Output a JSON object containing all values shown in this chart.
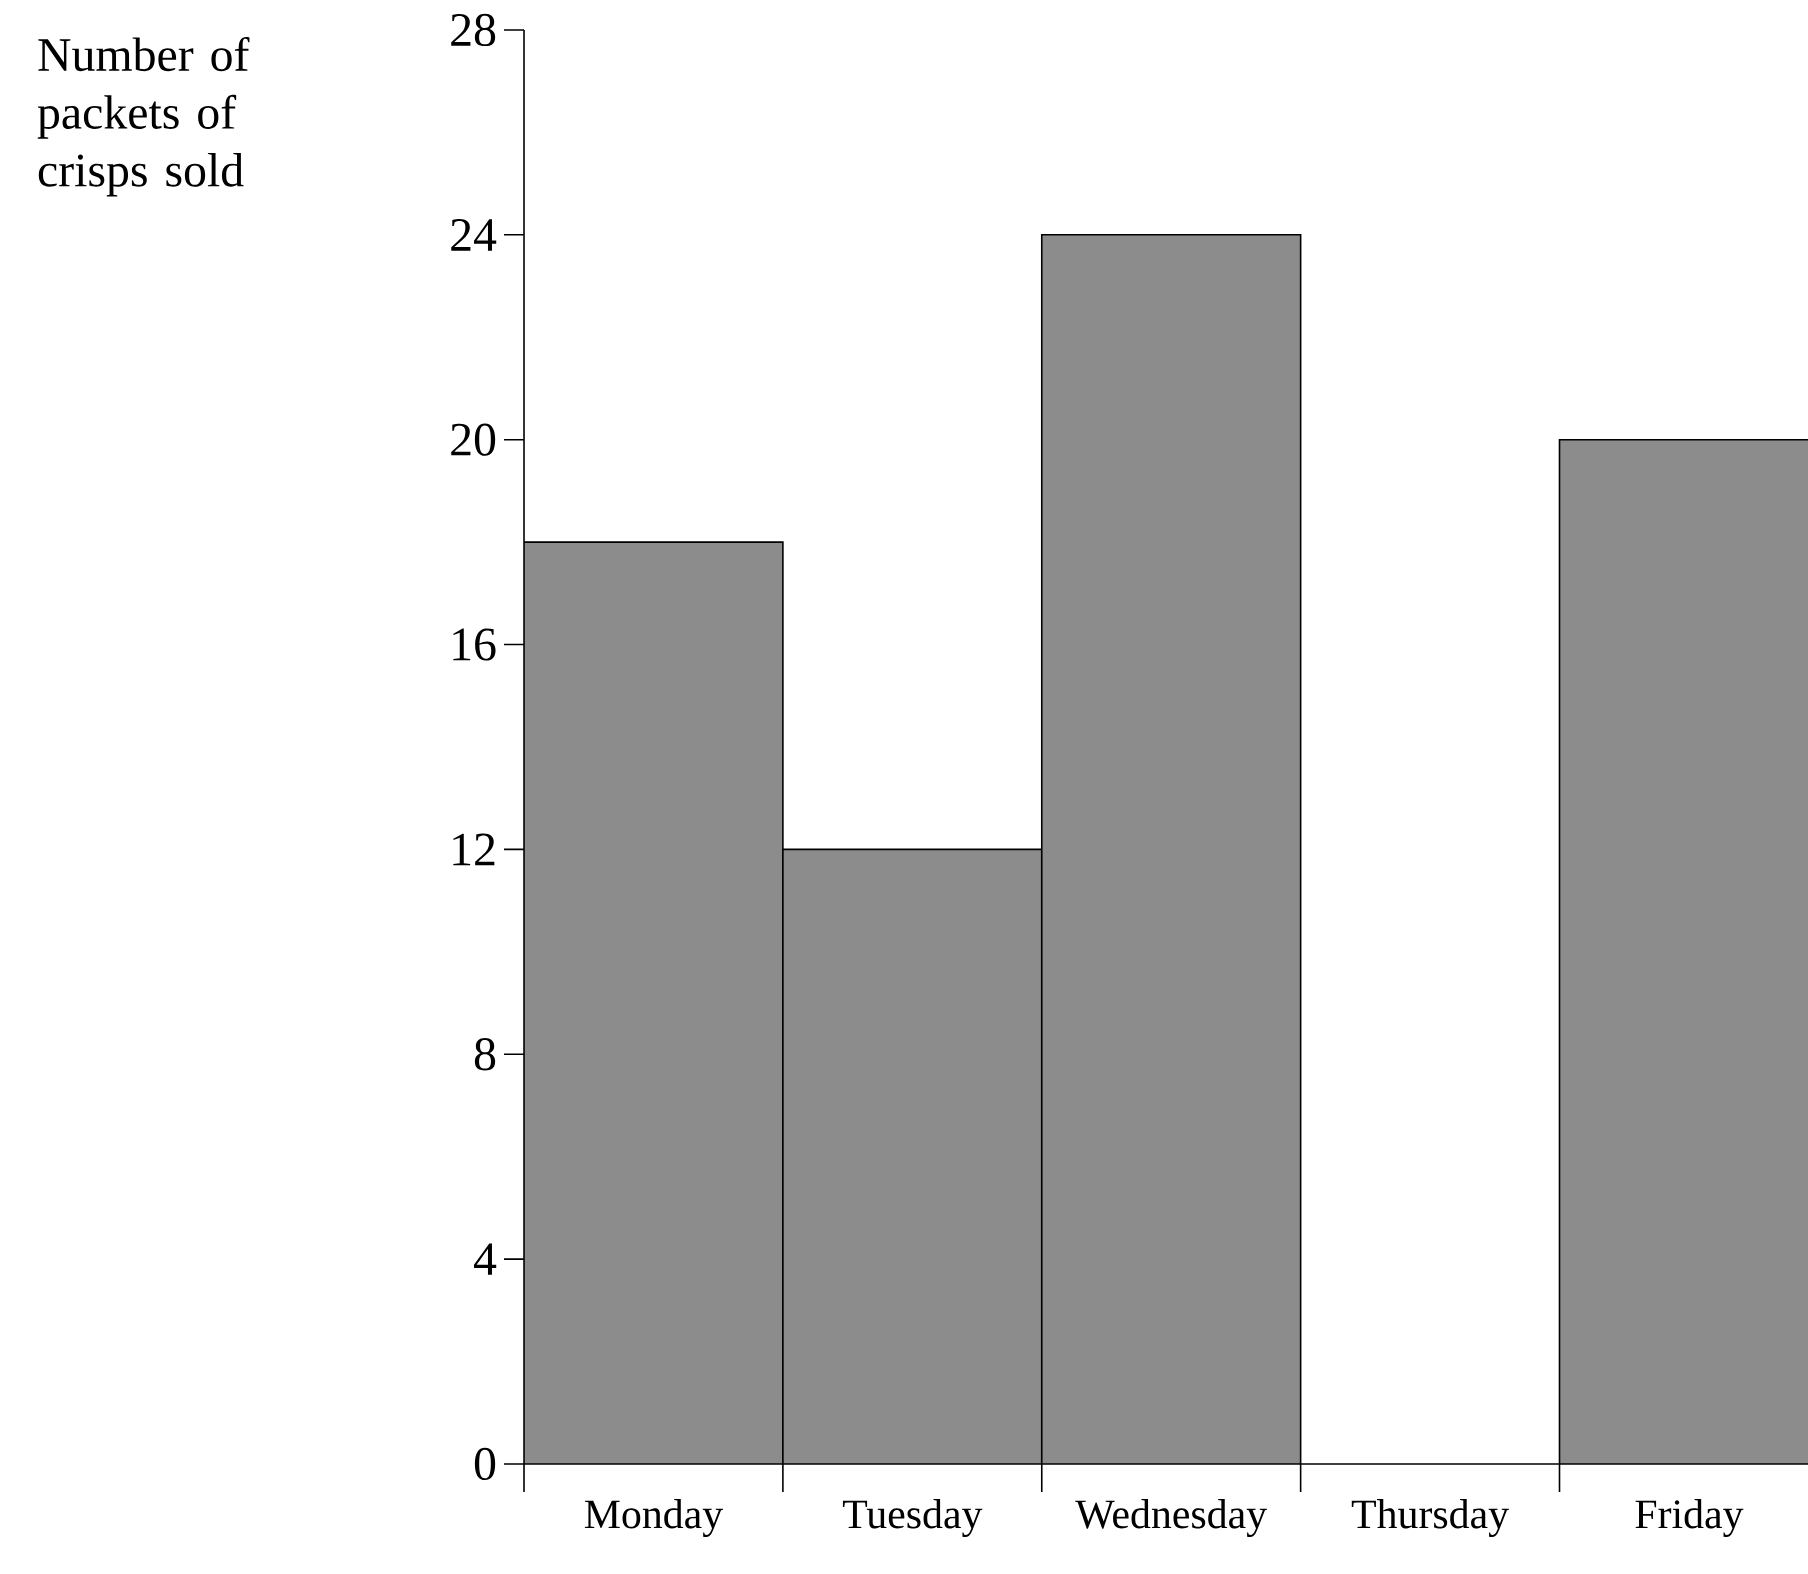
{
  "chart_data": {
    "type": "bar",
    "ylabel": "Number of packets of crisps sold",
    "categories": [
      "Monday",
      "Tuesday",
      "Wednesday",
      "Thursday",
      "Friday"
    ],
    "values": [
      18,
      12,
      24,
      null,
      20
    ],
    "color": "#8c8c8c",
    "ylim": [
      0,
      28
    ],
    "yticks": [
      0,
      4,
      8,
      12,
      16,
      20,
      24,
      28
    ],
    "grid": false
  }
}
